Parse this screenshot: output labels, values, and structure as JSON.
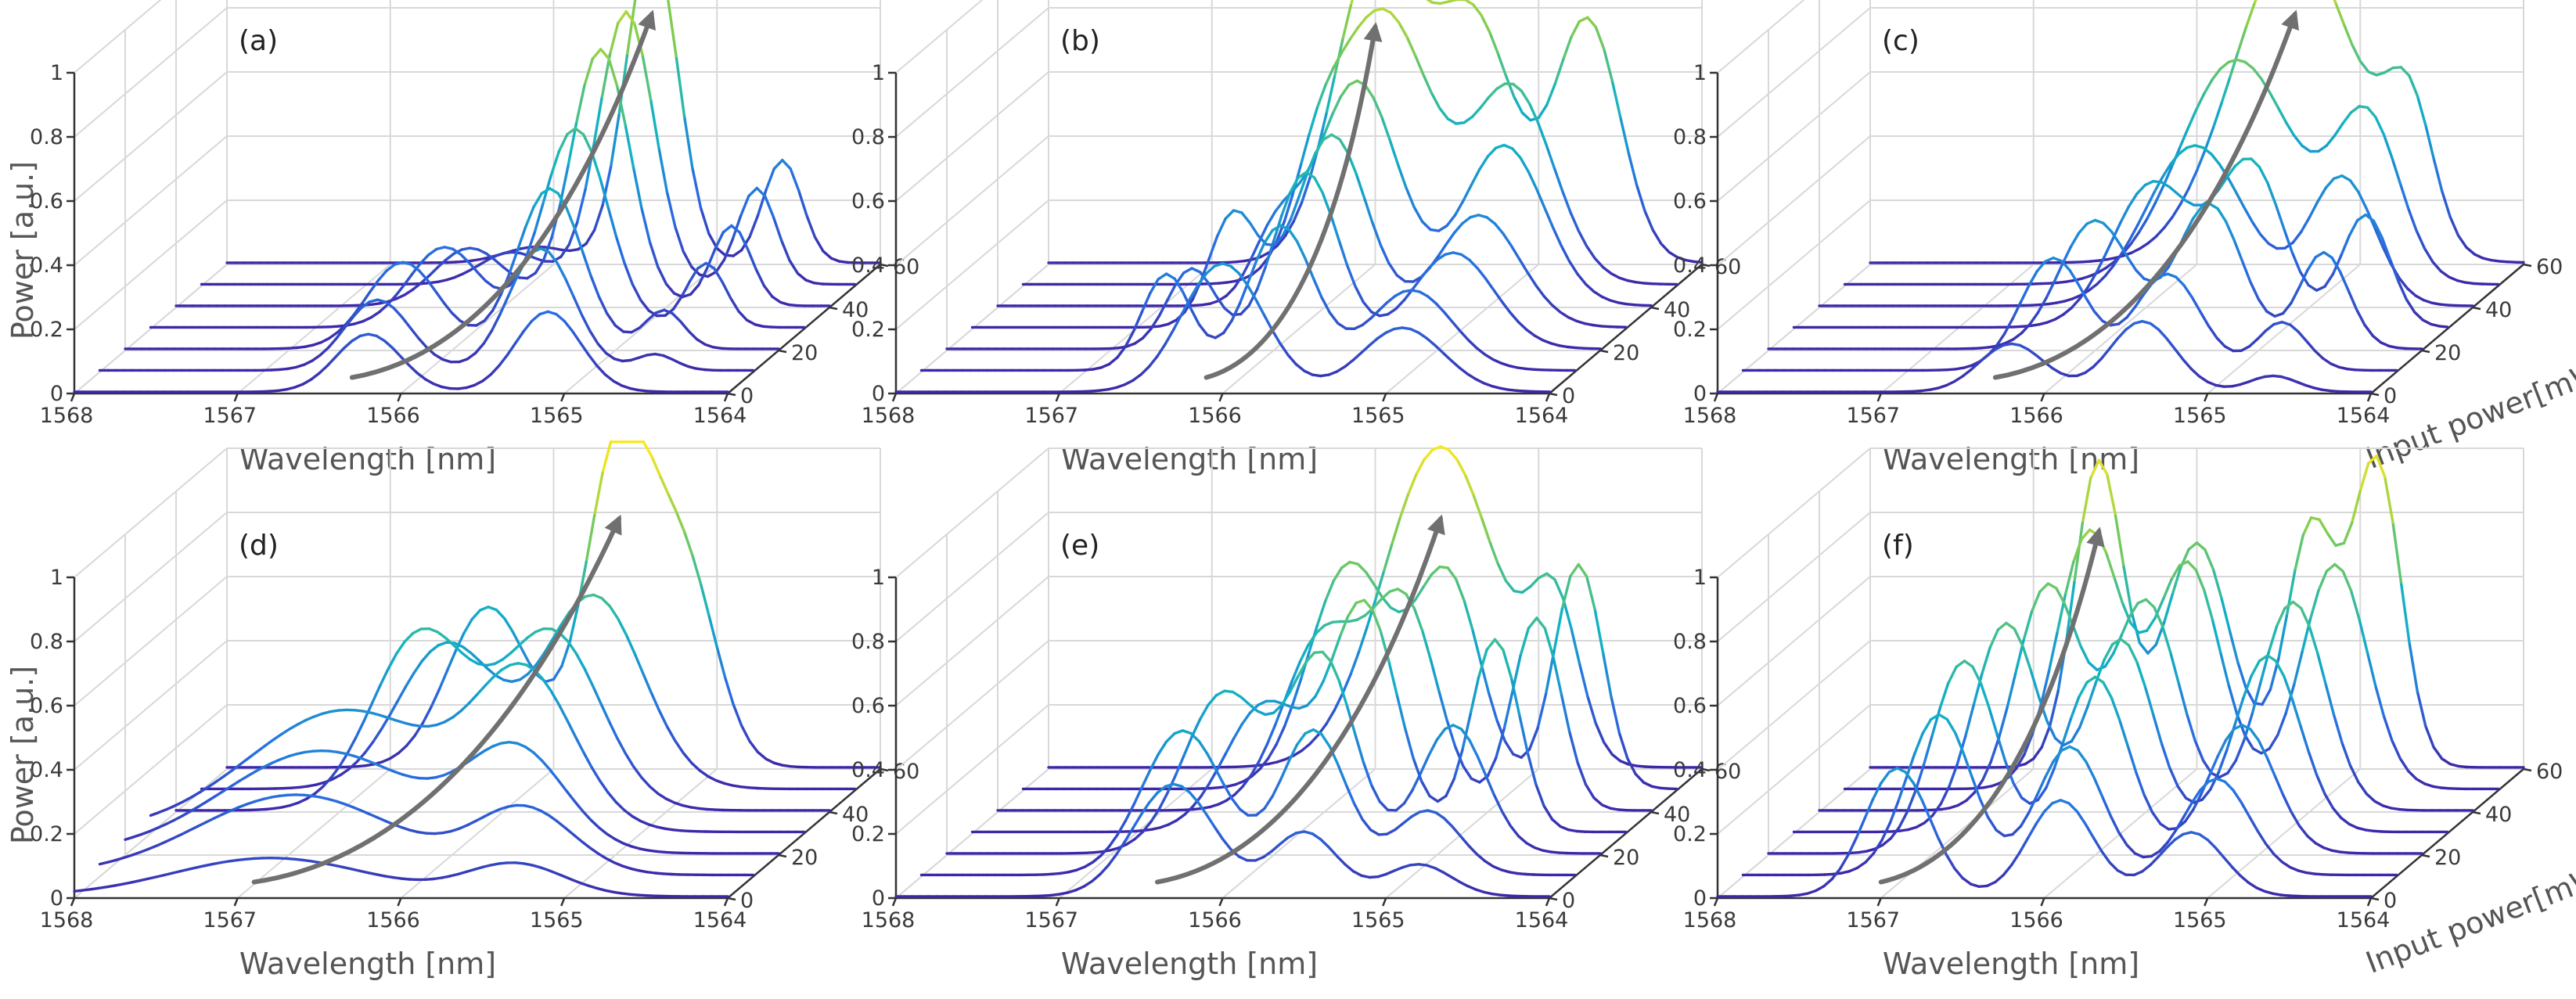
{
  "chart_data": {
    "type": "line",
    "description_type": "3d-waterfall",
    "layout": "2x3",
    "shared": {
      "xlabel": "Wavelength [nm]",
      "ylabel": "Power [a.u.]",
      "zlabel": "Input power[mW]",
      "x_ticks": [
        "1568",
        "1567",
        "1566",
        "1565",
        "1564"
      ],
      "y_ticks": [
        "0",
        "0.2",
        "0.4",
        "0.6",
        "0.8",
        "1"
      ],
      "z_ticks": [
        "0",
        "20",
        "40",
        "60"
      ],
      "xlim": [
        1564,
        1568
      ],
      "ylim": [
        0,
        1
      ],
      "zlim": [
        0,
        60
      ],
      "input_powers_mW": [
        0,
        10,
        20,
        30,
        40,
        50,
        60
      ]
    },
    "panels": [
      {
        "label": "(a)",
        "series": [
          {
            "input_power_mW": 0,
            "peaks": [
              [
                1566.2,
                0.18,
                0.2
              ],
              [
                1565.1,
                0.25,
                0.2
              ]
            ]
          },
          {
            "input_power_mW": 10,
            "peaks": [
              [
                1566.3,
                0.22,
                0.2
              ],
              [
                1565.3,
                0.38,
                0.2
              ],
              [
                1564.6,
                0.05,
                0.12
              ]
            ]
          },
          {
            "input_power_mW": 20,
            "peaks": [
              [
                1566.3,
                0.27,
                0.22
              ],
              [
                1565.4,
                0.5,
                0.2
              ],
              [
                1564.7,
                0.12,
                0.12
              ]
            ]
          },
          {
            "input_power_mW": 30,
            "peaks": [
              [
                1566.2,
                0.25,
                0.22
              ],
              [
                1565.4,
                0.62,
                0.2
              ],
              [
                1564.6,
                0.2,
                0.12
              ]
            ]
          },
          {
            "input_power_mW": 40,
            "peaks": [
              [
                1566.2,
                0.18,
                0.22
              ],
              [
                1565.4,
                0.8,
                0.18
              ],
              [
                1564.6,
                0.25,
                0.12
              ]
            ]
          },
          {
            "input_power_mW": 50,
            "peaks": [
              [
                1566.1,
                0.1,
                0.2
              ],
              [
                1565.4,
                0.85,
                0.17
              ],
              [
                1564.6,
                0.3,
                0.12
              ]
            ]
          },
          {
            "input_power_mW": 60,
            "peaks": [
              [
                1566.1,
                0.05,
                0.2
              ],
              [
                1565.4,
                1.0,
                0.16
              ],
              [
                1564.6,
                0.32,
                0.12
              ]
            ]
          }
        ]
      },
      {
        "label": "(b)",
        "series": [
          {
            "input_power_mW": 0,
            "peaks": [
              [
                1566.0,
                0.4,
                0.25
              ],
              [
                1564.9,
                0.2,
                0.25
              ]
            ]
          },
          {
            "input_power_mW": 10,
            "peaks": [
              [
                1566.5,
                0.3,
                0.15
              ],
              [
                1565.8,
                0.45,
                0.2
              ],
              [
                1565.0,
                0.25,
                0.25
              ]
            ]
          },
          {
            "input_power_mW": 20,
            "peaks": [
              [
                1566.5,
                0.25,
                0.15
              ],
              [
                1565.8,
                0.55,
                0.2
              ],
              [
                1564.9,
                0.3,
                0.25
              ]
            ]
          },
          {
            "input_power_mW": 30,
            "peaks": [
              [
                1566.4,
                0.35,
                0.15
              ],
              [
                1565.8,
                0.6,
                0.22
              ],
              [
                1564.9,
                0.35,
                0.25
              ]
            ]
          },
          {
            "input_power_mW": 40,
            "peaks": [
              [
                1566.3,
                0.2,
                0.15
              ],
              [
                1565.8,
                0.7,
                0.25
              ],
              [
                1564.9,
                0.5,
                0.25
              ]
            ]
          },
          {
            "input_power_mW": 50,
            "peaks": [
              [
                1566.2,
                0.2,
                0.15
              ],
              [
                1565.8,
                0.85,
                0.3
              ],
              [
                1565.0,
                0.6,
                0.25
              ]
            ]
          },
          {
            "input_power_mW": 60,
            "peaks": [
              [
                1566.0,
                0.95,
                0.25
              ],
              [
                1565.4,
                0.75,
                0.25
              ],
              [
                1564.7,
                0.75,
                0.2
              ]
            ]
          }
        ]
      },
      {
        "label": "(c)",
        "series": [
          {
            "input_power_mW": 0,
            "peaks": [
              [
                1566.2,
                0.15,
                0.2
              ],
              [
                1565.4,
                0.22,
                0.2
              ],
              [
                1564.6,
                0.05,
                0.15
              ]
            ]
          },
          {
            "input_power_mW": 10,
            "peaks": [
              [
                1566.1,
                0.35,
                0.2
              ],
              [
                1565.4,
                0.3,
                0.2
              ],
              [
                1564.7,
                0.15,
                0.15
              ]
            ]
          },
          {
            "input_power_mW": 20,
            "peaks": [
              [
                1566.0,
                0.4,
                0.22
              ],
              [
                1565.3,
                0.45,
                0.2
              ],
              [
                1564.6,
                0.3,
                0.15
              ]
            ]
          },
          {
            "input_power_mW": 30,
            "peaks": [
              [
                1565.8,
                0.45,
                0.25
              ],
              [
                1565.2,
                0.5,
                0.2
              ],
              [
                1564.5,
                0.35,
                0.15
              ]
            ]
          },
          {
            "input_power_mW": 40,
            "peaks": [
              [
                1565.7,
                0.5,
                0.3
              ],
              [
                1564.8,
                0.4,
                0.2
              ]
            ]
          },
          {
            "input_power_mW": 50,
            "peaks": [
              [
                1565.6,
                0.7,
                0.35
              ],
              [
                1564.8,
                0.5,
                0.2
              ]
            ]
          },
          {
            "input_power_mW": 60,
            "peaks": [
              [
                1565.4,
                1.0,
                0.38
              ],
              [
                1564.7,
                0.4,
                0.15
              ]
            ]
          }
        ]
      },
      {
        "label": "(d)",
        "series": [
          {
            "input_power_mW": 0,
            "peaks": [
              [
                1566.8,
                0.12,
                0.6
              ],
              [
                1565.3,
                0.1,
                0.3
              ]
            ]
          },
          {
            "input_power_mW": 10,
            "peaks": [
              [
                1566.8,
                0.25,
                0.6
              ],
              [
                1565.4,
                0.2,
                0.3
              ]
            ]
          },
          {
            "input_power_mW": 20,
            "peaks": [
              [
                1566.8,
                0.32,
                0.6
              ],
              [
                1565.6,
                0.3,
                0.3
              ]
            ]
          },
          {
            "input_power_mW": 30,
            "peaks": [
              [
                1566.8,
                0.38,
                0.6
              ],
              [
                1565.7,
                0.45,
                0.3
              ]
            ]
          },
          {
            "input_power_mW": 40,
            "peaks": [
              [
                1566.5,
                0.55,
                0.3
              ],
              [
                1565.7,
                0.55,
                0.3
              ]
            ]
          },
          {
            "input_power_mW": 50,
            "peaks": [
              [
                1566.5,
                0.45,
                0.3
              ],
              [
                1565.6,
                0.6,
                0.3
              ]
            ]
          },
          {
            "input_power_mW": 60,
            "peaks": [
              [
                1566.4,
                0.5,
                0.25
              ],
              [
                1565.6,
                1.0,
                0.2
              ],
              [
                1565.2,
                0.6,
                0.2
              ]
            ]
          }
        ]
      },
      {
        "label": "(e)",
        "series": [
          {
            "input_power_mW": 0,
            "peaks": [
              [
                1566.3,
                0.35,
                0.25
              ],
              [
                1565.5,
                0.2,
                0.2
              ],
              [
                1564.8,
                0.1,
                0.2
              ]
            ]
          },
          {
            "input_power_mW": 10,
            "peaks": [
              [
                1566.4,
                0.45,
                0.25
              ],
              [
                1565.6,
                0.45,
                0.2
              ],
              [
                1564.9,
                0.2,
                0.2
              ]
            ]
          },
          {
            "input_power_mW": 20,
            "peaks": [
              [
                1566.3,
                0.5,
                0.25
              ],
              [
                1565.7,
                0.6,
                0.2
              ],
              [
                1564.9,
                0.4,
                0.2
              ]
            ]
          },
          {
            "input_power_mW": 30,
            "peaks": [
              [
                1566.2,
                0.4,
                0.25
              ],
              [
                1565.6,
                0.7,
                0.2
              ],
              [
                1564.8,
                0.6,
                0.15
              ]
            ]
          },
          {
            "input_power_mW": 40,
            "peaks": [
              [
                1566.0,
                0.55,
                0.25
              ],
              [
                1565.5,
                0.6,
                0.2
              ],
              [
                1564.7,
                0.6,
                0.15
              ]
            ]
          },
          {
            "input_power_mW": 50,
            "peaks": [
              [
                1566.0,
                0.7,
                0.25
              ],
              [
                1565.4,
                0.65,
                0.2
              ],
              [
                1564.6,
                0.7,
                0.15
              ]
            ]
          },
          {
            "input_power_mW": 60,
            "peaks": [
              [
                1565.6,
                1.0,
                0.35
              ],
              [
                1564.9,
                0.45,
                0.15
              ]
            ]
          }
        ]
      },
      {
        "label": "(f)",
        "series": [
          {
            "input_power_mW": 0,
            "peaks": [
              [
                1566.9,
                0.4,
                0.2
              ],
              [
                1565.9,
                0.3,
                0.2
              ],
              [
                1565.1,
                0.2,
                0.2
              ]
            ]
          },
          {
            "input_power_mW": 10,
            "peaks": [
              [
                1566.8,
                0.5,
                0.2
              ],
              [
                1566.0,
                0.4,
                0.2
              ],
              [
                1565.1,
                0.3,
                0.2
              ]
            ]
          },
          {
            "input_power_mW": 20,
            "peaks": [
              [
                1566.8,
                0.6,
                0.2
              ],
              [
                1566.0,
                0.55,
                0.2
              ],
              [
                1565.1,
                0.4,
                0.2
              ]
            ]
          },
          {
            "input_power_mW": 30,
            "peaks": [
              [
                1566.7,
                0.65,
                0.2
              ],
              [
                1566.0,
                0.6,
                0.2
              ],
              [
                1565.1,
                0.55,
                0.2
              ]
            ]
          },
          {
            "input_power_mW": 40,
            "peaks": [
              [
                1566.6,
                0.7,
                0.2
              ],
              [
                1566.0,
                0.65,
                0.2
              ],
              [
                1565.1,
                0.65,
                0.2
              ]
            ]
          },
          {
            "input_power_mW": 50,
            "peaks": [
              [
                1566.5,
                0.8,
                0.2
              ],
              [
                1565.9,
                0.7,
                0.2
              ],
              [
                1565.0,
                0.7,
                0.2
              ]
            ]
          },
          {
            "input_power_mW": 60,
            "peaks": [
              [
                1566.6,
                0.95,
                0.15
              ],
              [
                1566.0,
                0.7,
                0.2
              ],
              [
                1565.3,
                0.75,
                0.15
              ],
              [
                1564.9,
                0.95,
                0.15
              ]
            ]
          }
        ]
      }
    ]
  }
}
